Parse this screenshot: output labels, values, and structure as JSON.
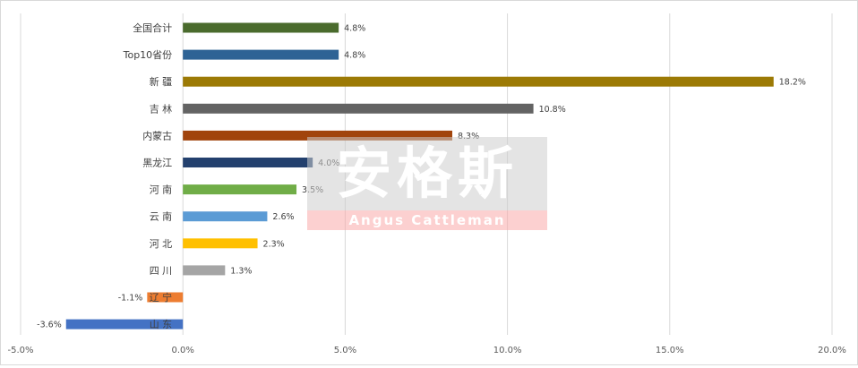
{
  "chart_data": {
    "type": "bar",
    "orientation": "horizontal",
    "title": "",
    "xlabel": "",
    "ylabel": "",
    "xlim": [
      -0.05,
      0.2
    ],
    "x_ticks": [
      {
        "value": -0.05,
        "label": "-5.0%"
      },
      {
        "value": 0.0,
        "label": "0.0%"
      },
      {
        "value": 0.05,
        "label": "5.0%"
      },
      {
        "value": 0.1,
        "label": "10.0%"
      },
      {
        "value": 0.15,
        "label": "15.0%"
      },
      {
        "value": 0.2,
        "label": "20.0%"
      }
    ],
    "grid": "vertical",
    "legend": "none",
    "bars": [
      {
        "category": "全国合计",
        "value": 0.048,
        "label": "4.8%",
        "color": "#4a6b2d"
      },
      {
        "category": "Top10省份",
        "value": 0.048,
        "label": "4.8%",
        "color": "#2e6395"
      },
      {
        "category": "新  疆",
        "value": 0.182,
        "label": "18.2%",
        "color": "#9c7a05"
      },
      {
        "category": "吉  林",
        "value": 0.108,
        "label": "10.8%",
        "color": "#636363"
      },
      {
        "category": "内蒙古",
        "value": 0.083,
        "label": "8.3%",
        "color": "#a1440c"
      },
      {
        "category": "黑龙江",
        "value": 0.04,
        "label": "4.0%",
        "color": "#23406e"
      },
      {
        "category": "河  南",
        "value": 0.035,
        "label": "3.5%",
        "color": "#70ad47"
      },
      {
        "category": "云  南",
        "value": 0.026,
        "label": "2.6%",
        "color": "#5b9bd5"
      },
      {
        "category": "河  北",
        "value": 0.023,
        "label": "2.3%",
        "color": "#ffc000"
      },
      {
        "category": "四  川",
        "value": 0.013,
        "label": "1.3%",
        "color": "#a5a5a5"
      },
      {
        "category": "辽  宁",
        "value": -0.011,
        "label": "-1.1%",
        "color": "#ed7d31"
      },
      {
        "category": "山  东",
        "value": -0.036,
        "label": "-3.6%",
        "color": "#4472c4"
      }
    ]
  },
  "watermark": {
    "chinese": "安格斯",
    "english": "Angus Cattleman"
  }
}
